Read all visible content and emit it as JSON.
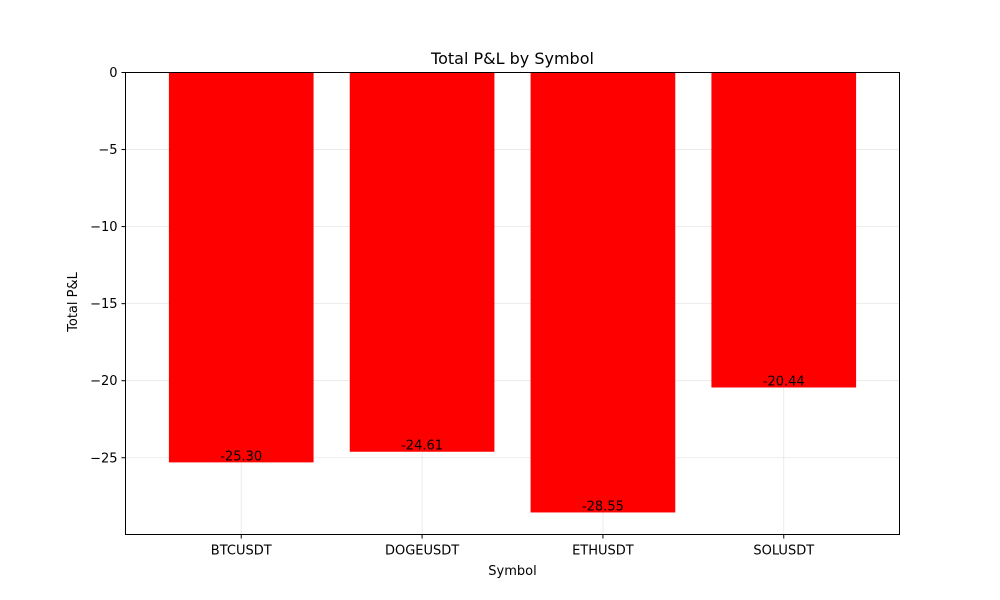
{
  "chart_data": {
    "type": "bar",
    "title": "Total P&L by Symbol",
    "xlabel": "Symbol",
    "ylabel": "Total P&L",
    "categories": [
      "BTCUSDT",
      "DOGEUSDT",
      "ETHUSDT",
      "SOLUSDT"
    ],
    "values": [
      -25.3,
      -24.61,
      -28.55,
      -20.44
    ],
    "data_labels": [
      "-25.30",
      "-24.61",
      "-28.55",
      "-20.44"
    ],
    "ylim": [
      -29.98,
      0
    ],
    "yticks": [
      0,
      -5,
      -10,
      -15,
      -20,
      -25
    ],
    "ytick_labels": [
      "0",
      "−5",
      "−10",
      "−15",
      "−20",
      "−25"
    ],
    "grid": true,
    "bar_color": "#ff0000"
  }
}
